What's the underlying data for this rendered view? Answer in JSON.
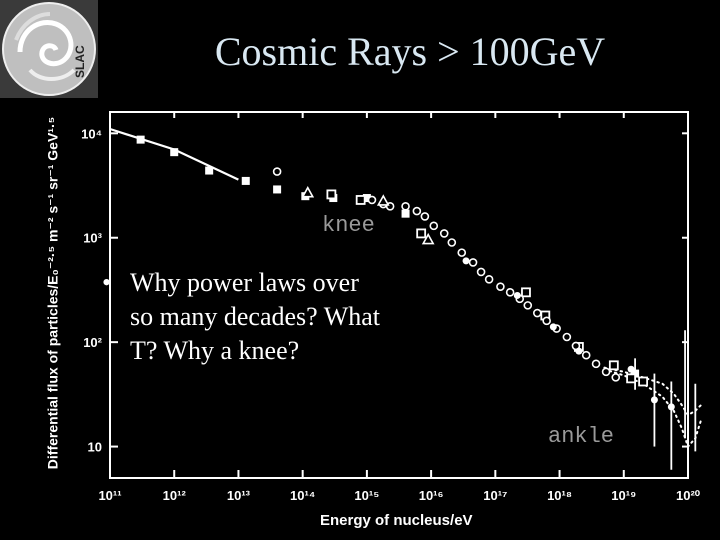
{
  "slide": {
    "title": "Cosmic Rays > 100GeV",
    "logo_text": "SLAC",
    "bullets": [
      "Why power laws over so many decades? What T? Why a knee?"
    ],
    "bullet_glyph": "•"
  },
  "chart_data": {
    "type": "scatter",
    "title": "",
    "xlabel": "Energy of nucleus/eV",
    "ylabel": "Differential flux of particles/E₀⁻²·⁵ m⁻² s⁻¹ sr⁻¹ GeV¹·⁵",
    "x_scale": "log",
    "y_scale": "log",
    "xlim": [
      100000000000.0,
      1e+20
    ],
    "ylim": [
      5,
      16000.0
    ],
    "x_ticks": [
      {
        "value": 100000000000.0,
        "label": "10¹¹"
      },
      {
        "value": 1000000000000.0,
        "label": "10¹²"
      },
      {
        "value": 10000000000000.0,
        "label": "10¹³"
      },
      {
        "value": 100000000000000.0,
        "label": "10¹⁴"
      },
      {
        "value": 1000000000000000.0,
        "label": "10¹⁵"
      },
      {
        "value": 1e+16,
        "label": "10¹⁶"
      },
      {
        "value": 1e+17,
        "label": "10¹⁷"
      },
      {
        "value": 1e+18,
        "label": "10¹⁸"
      },
      {
        "value": 1e+19,
        "label": "10¹⁹"
      },
      {
        "value": 1e+20,
        "label": "10²⁰"
      }
    ],
    "y_ticks": [
      {
        "value": 10,
        "label": "10"
      },
      {
        "value": 100,
        "label": "10²"
      },
      {
        "value": 1000,
        "label": "10³"
      },
      {
        "value": 10000,
        "label": "10⁴"
      }
    ],
    "annotations": [
      {
        "text": "knee",
        "x": 3000000000000000.0,
        "y": 1000
      },
      {
        "text": "ankle",
        "x": 1e+19,
        "y": 10
      }
    ],
    "series": [
      {
        "marker": "filled-square",
        "points": [
          [
            300000000000.0,
            8700
          ],
          [
            1000000000000.0,
            6600
          ],
          [
            3500000000000.0,
            4400
          ],
          [
            13000000000000.0,
            3500
          ],
          [
            40000000000000.0,
            2900
          ],
          [
            110000000000000.0,
            2500
          ],
          [
            300000000000000.0,
            2400
          ],
          [
            1000000000000000.0,
            2400
          ],
          [
            4000000000000000.0,
            1700
          ],
          [
            1.5e+19,
            50
          ]
        ]
      },
      {
        "marker": "open-square",
        "points": [
          [
            280000000000000.0,
            2600
          ],
          [
            800000000000000.0,
            2300
          ],
          [
            7000000000000000.0,
            1100
          ],
          [
            3e+17,
            300
          ],
          [
            6e+17,
            180
          ],
          [
            2e+18,
            90
          ],
          [
            7e+18,
            60
          ],
          [
            1.3e+19,
            45
          ],
          [
            2e+19,
            42
          ]
        ]
      },
      {
        "marker": "open-circle",
        "points": [
          [
            40000000000000.0,
            4300
          ],
          [
            1200000000000000.0,
            2300
          ],
          [
            1800000000000000.0,
            2100
          ],
          [
            2300000000000000.0,
            2000
          ],
          [
            4000000000000000.0,
            2000
          ],
          [
            6000000000000000.0,
            1800
          ],
          [
            8000000000000000.0,
            1600
          ],
          [
            1.1e+16,
            1300
          ],
          [
            1.6e+16,
            1100
          ],
          [
            2.1e+16,
            900
          ],
          [
            3e+16,
            720
          ],
          [
            4.5e+16,
            580
          ],
          [
            6e+16,
            470
          ],
          [
            8e+16,
            400
          ],
          [
            1.2e+17,
            340
          ],
          [
            1.7e+17,
            300
          ],
          [
            2.4e+17,
            260
          ],
          [
            3.2e+17,
            225
          ],
          [
            4.5e+17,
            190
          ],
          [
            6.3e+17,
            160
          ],
          [
            9e+17,
            135
          ],
          [
            1.3e+18,
            112
          ],
          [
            1.8e+18,
            92
          ],
          [
            2.6e+18,
            75
          ],
          [
            3.7e+18,
            62
          ],
          [
            5.3e+18,
            52
          ],
          [
            7.5e+18,
            46
          ]
        ]
      },
      {
        "marker": "open-triangle",
        "points": [
          [
            120000000000000.0,
            2700
          ],
          [
            1800000000000000.0,
            2250
          ],
          [
            9000000000000000.0,
            960
          ]
        ]
      },
      {
        "marker": "filled-circle",
        "points": [
          [
            3.5e+16,
            600
          ],
          [
            2.2e+17,
            280
          ],
          [
            8e+17,
            140
          ],
          [
            2e+18,
            82
          ],
          [
            1.3e+19,
            55
          ],
          [
            3e+19,
            28
          ],
          [
            5.5e+19,
            24
          ]
        ]
      }
    ],
    "fit_line": [
      [
        100000000000.0,
        11000.0
      ],
      [
        200000000000.0,
        9600
      ],
      [
        1000000000000.0,
        7000
      ],
      [
        10000000000000.0,
        3600
      ]
    ],
    "error_bars": [
      {
        "x": 1.5e+19,
        "y": 50,
        "lo": 35,
        "hi": 70
      },
      {
        "x": 3e+19,
        "y": 28,
        "lo": 10,
        "hi": 50
      },
      {
        "x": 5.5e+19,
        "y": 24,
        "lo": 6,
        "hi": 42
      },
      {
        "x": 9e+19,
        "y": 45,
        "lo": 12,
        "hi": 130
      },
      {
        "x": 1.3e+20,
        "y": 22,
        "lo": 9,
        "hi": 40
      }
    ],
    "model_curves": [
      {
        "style": "dotted",
        "points": [
          [
            5e+18,
            55
          ],
          [
            1e+19,
            48
          ],
          [
            2e+19,
            40
          ],
          [
            4e+19,
            30
          ],
          [
            6e+19,
            22
          ],
          [
            8e+19,
            15
          ],
          [
            1e+20,
            10
          ],
          [
            1.3e+20,
            12
          ],
          [
            1.6e+20,
            18
          ]
        ]
      },
      {
        "style": "dotted",
        "points": [
          [
            5e+18,
            57
          ],
          [
            1e+19,
            52
          ],
          [
            2e+19,
            46
          ],
          [
            4e+19,
            40
          ],
          [
            6e+19,
            32
          ],
          [
            8e+19,
            25
          ],
          [
            1e+20,
            20
          ],
          [
            1.3e+20,
            22
          ],
          [
            1.6e+20,
            25
          ]
        ]
      }
    ]
  }
}
